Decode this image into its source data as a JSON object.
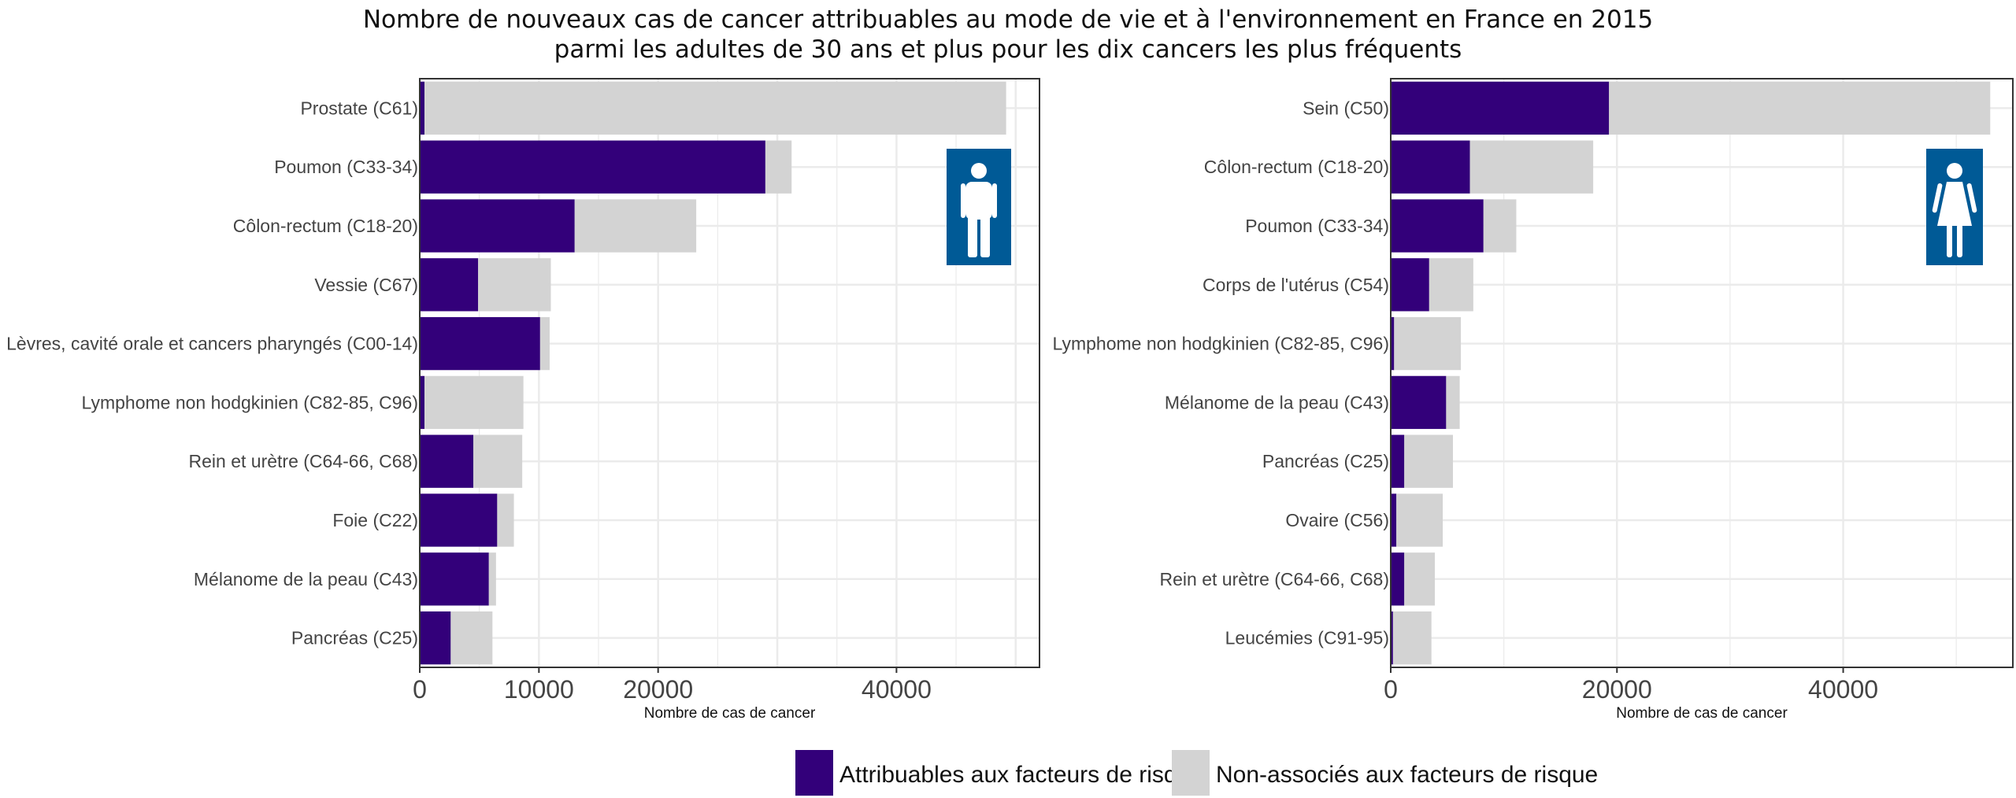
{
  "title": {
    "line1": "Nombre de nouveaux cas de cancer attribuables au mode de vie et à l'environnement  en France en 2015",
    "line2": "parmi les adultes de 30 ans et plus pour les dix cancers les plus fréquents"
  },
  "colors": {
    "attributable": "#33007a",
    "non_associated": "#d3d3d3",
    "icon_bg": "#005a96",
    "grid": "#ebebeb",
    "frame": "#333333"
  },
  "legend": {
    "attributable": "Attribuables aux facteurs de risque",
    "non_associated": "Non-associés aux facteurs de risque"
  },
  "icons": {
    "men": "man-icon",
    "women": "woman-icon"
  },
  "chart_data": [
    {
      "type": "bar",
      "orientation": "horizontal",
      "stacked": true,
      "panel": "men",
      "categories": [
        "Prostate (C61)",
        "Poumon (C33-34)",
        "Côlon-rectum (C18-20)",
        "Vessie (C67)",
        "Lèvres, cavité orale et cancers pharyngés (C00-14)",
        "Lymphome non  hodgkinien (C82-85, C96)",
        "Rein et urètre (C64-66, C68)",
        "Foie (C22)",
        "Mélanome de la peau (C43)",
        "Pancréas (C25)"
      ],
      "series": [
        {
          "name": "Attribuables aux facteurs de risque",
          "values": [
            400,
            29000,
            13000,
            4900,
            10100,
            400,
            4500,
            6500,
            5800,
            2600
          ]
        },
        {
          "name": "Non-associés aux facteurs de risque",
          "values": [
            48800,
            2200,
            10200,
            6100,
            800,
            8300,
            4100,
            1400,
            600,
            3500
          ]
        }
      ],
      "xlabel": "Nombre de cas de cancer",
      "ticks": [
        0,
        10000,
        20000,
        40000
      ],
      "tick_labels": [
        "0",
        "10000",
        "20000",
        "40000"
      ],
      "xlim": [
        0,
        52000
      ],
      "grid": true
    },
    {
      "type": "bar",
      "orientation": "horizontal",
      "stacked": true,
      "panel": "women",
      "categories": [
        "Sein (C50)",
        "Côlon-rectum (C18-20)",
        "Poumon (C33-34)",
        "Corps de l'utérus (C54)",
        "Lymphome non  hodgkinien (C82-85, C96)",
        "Mélanome de la peau (C43)",
        "Pancréas (C25)",
        "Ovaire (C56)",
        "Rein et urètre (C64-66, C68)",
        "Leucémies (C91-95)"
      ],
      "series": [
        {
          "name": "Attribuables aux facteurs de risque",
          "values": [
            19300,
            7000,
            8200,
            3400,
            300,
            4900,
            1200,
            500,
            1200,
            200
          ]
        },
        {
          "name": "Non-associés aux facteurs de risque",
          "values": [
            33700,
            10900,
            2900,
            3900,
            5900,
            1200,
            4300,
            4100,
            2700,
            3400
          ]
        }
      ],
      "xlabel": "Nombre de cas de cancer",
      "ticks": [
        0,
        20000,
        40000
      ],
      "tick_labels": [
        "0",
        "20000",
        "40000"
      ],
      "xlim": [
        0,
        55000
      ],
      "grid": true
    }
  ]
}
